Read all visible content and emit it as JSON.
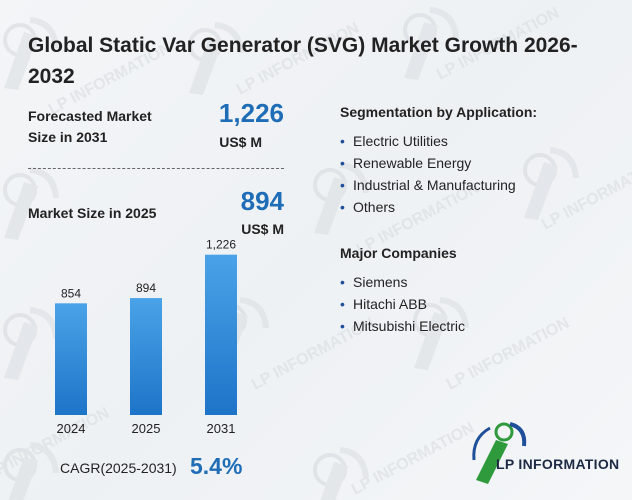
{
  "title": "Global Static Var Generator (SVG) Market Growth 2026-2032",
  "forecast": {
    "label": "Forecasted Market Size in 2031",
    "value": "1,226",
    "unit": "US$ M"
  },
  "current": {
    "label": "Market Size in 2025",
    "value": "894",
    "unit": "US$ M"
  },
  "segmentation": {
    "title": "Segmentation by Application:",
    "items": [
      "Electric Utilities",
      "Renewable Energy",
      "Industrial & Manufacturing",
      "Others"
    ]
  },
  "companies": {
    "title": "Major Companies",
    "items": [
      "Siemens",
      "Hitachi ABB",
      "Mitsubishi Electric"
    ]
  },
  "cagr": {
    "label": "CAGR(2025-2031)",
    "value": "5.4%"
  },
  "brand": {
    "name": "LP INFORMATION",
    "watermark": "LP INFORMATION"
  },
  "colors": {
    "accent": "#1f6db6",
    "bar_top": "#4aa3e8",
    "bar_bottom": "#1e74c8",
    "logo_green": "#2e9a3c"
  },
  "chart_data": {
    "type": "bar",
    "categories": [
      "2024",
      "2025",
      "2031"
    ],
    "values": [
      854,
      894,
      1226
    ],
    "value_labels": [
      "854",
      "894",
      "1,226"
    ],
    "title": "",
    "xlabel": "",
    "ylabel": "",
    "ylim": [
      0,
      1300
    ],
    "grid": false,
    "legend": "none"
  }
}
